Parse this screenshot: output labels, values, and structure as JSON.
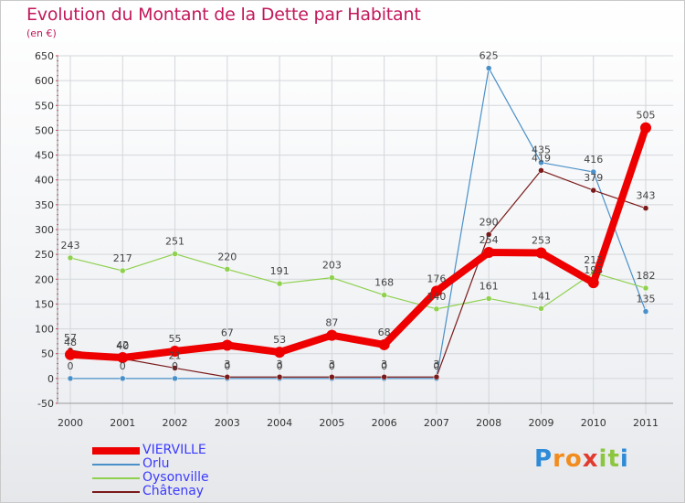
{
  "header": {
    "title": "Evolution du Montant de la Dette par Habitant",
    "unit": "(en €)"
  },
  "chart_data": {
    "type": "line",
    "categories": [
      "2000",
      "2001",
      "2002",
      "2003",
      "2004",
      "2005",
      "2006",
      "2007",
      "2008",
      "2009",
      "2010",
      "2011"
    ],
    "ylim": [
      -50,
      650
    ],
    "yticks": [
      -50,
      0,
      50,
      100,
      150,
      200,
      250,
      300,
      350,
      400,
      450,
      500,
      550,
      600,
      650
    ],
    "grid": true,
    "legend": "bottom-left",
    "series": [
      {
        "name": "Orlu",
        "color": "#4a90c8",
        "width": 1.2,
        "marker": 3,
        "values": [
          0,
          0,
          0,
          0,
          0,
          0,
          0,
          0,
          625,
          435,
          416,
          135
        ]
      },
      {
        "name": "Oysonville",
        "color": "#8fd14f",
        "width": 1.2,
        "marker": 3,
        "values": [
          243,
          217,
          251,
          220,
          191,
          203,
          168,
          140,
          161,
          141,
          213,
          182
        ]
      },
      {
        "name": "Châtenay",
        "color": "#7a1a1a",
        "width": 1.2,
        "marker": 3,
        "values": [
          57,
          40,
          21,
          3,
          3,
          3,
          3,
          3,
          290,
          419,
          379,
          343
        ]
      },
      {
        "name": "VIERVILLE",
        "color": "#ee0000",
        "width": 8,
        "marker": 6,
        "values": [
          48,
          42,
          55,
          67,
          53,
          87,
          68,
          176,
          254,
          253,
          193,
          505
        ]
      }
    ],
    "legend_order": [
      "VIERVILLE",
      "Orlu",
      "Oysonville",
      "Châtenay"
    ]
  },
  "logo": {
    "letters": [
      "P",
      "r",
      "o",
      "x",
      "i",
      "t",
      "i"
    ],
    "colors": [
      "#2e8bd8",
      "#f28c1e",
      "#f28c1e",
      "#e23a2e",
      "#8cc63f",
      "#8cc63f",
      "#2e8bd8"
    ]
  }
}
